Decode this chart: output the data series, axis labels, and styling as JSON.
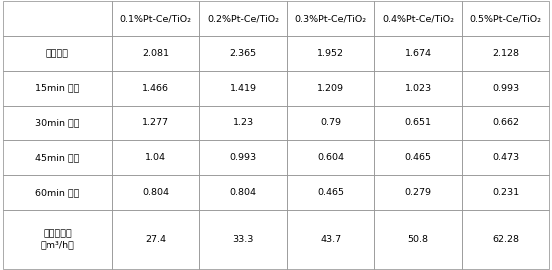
{
  "col_headers": [
    "0.1%Pt-Ce/TiO₂",
    "0.2%Pt-Ce/TiO₂",
    "0.3%Pt-Ce/TiO₂",
    "0.4%Pt-Ce/TiO₂",
    "0.5%Pt-Ce/TiO₂"
  ],
  "row_headers": [
    "初始浓度",
    "15min 浓度",
    "30min 浓度",
    "45min 浓度",
    "60min 浓度",
    "洁净空气量\n（m³/h）"
  ],
  "table_data": [
    [
      "2.081",
      "2.365",
      "1.952",
      "1.674",
      "2.128"
    ],
    [
      "1.466",
      "1.419",
      "1.209",
      "1.023",
      "0.993"
    ],
    [
      "1.277",
      "1.23",
      "0.79",
      "0.651",
      "0.662"
    ],
    [
      "1.04",
      "0.993",
      "0.604",
      "0.465",
      "0.473"
    ],
    [
      "0.804",
      "0.804",
      "0.465",
      "0.279",
      "0.231"
    ],
    [
      "27.4",
      "33.3",
      "43.7",
      "50.8",
      "62.28"
    ]
  ],
  "bg_color": "#ffffff",
  "border_color": "#888888",
  "text_color": "#000000",
  "font_size": 6.8,
  "fig_width": 5.52,
  "fig_height": 2.7,
  "dpi": 100
}
